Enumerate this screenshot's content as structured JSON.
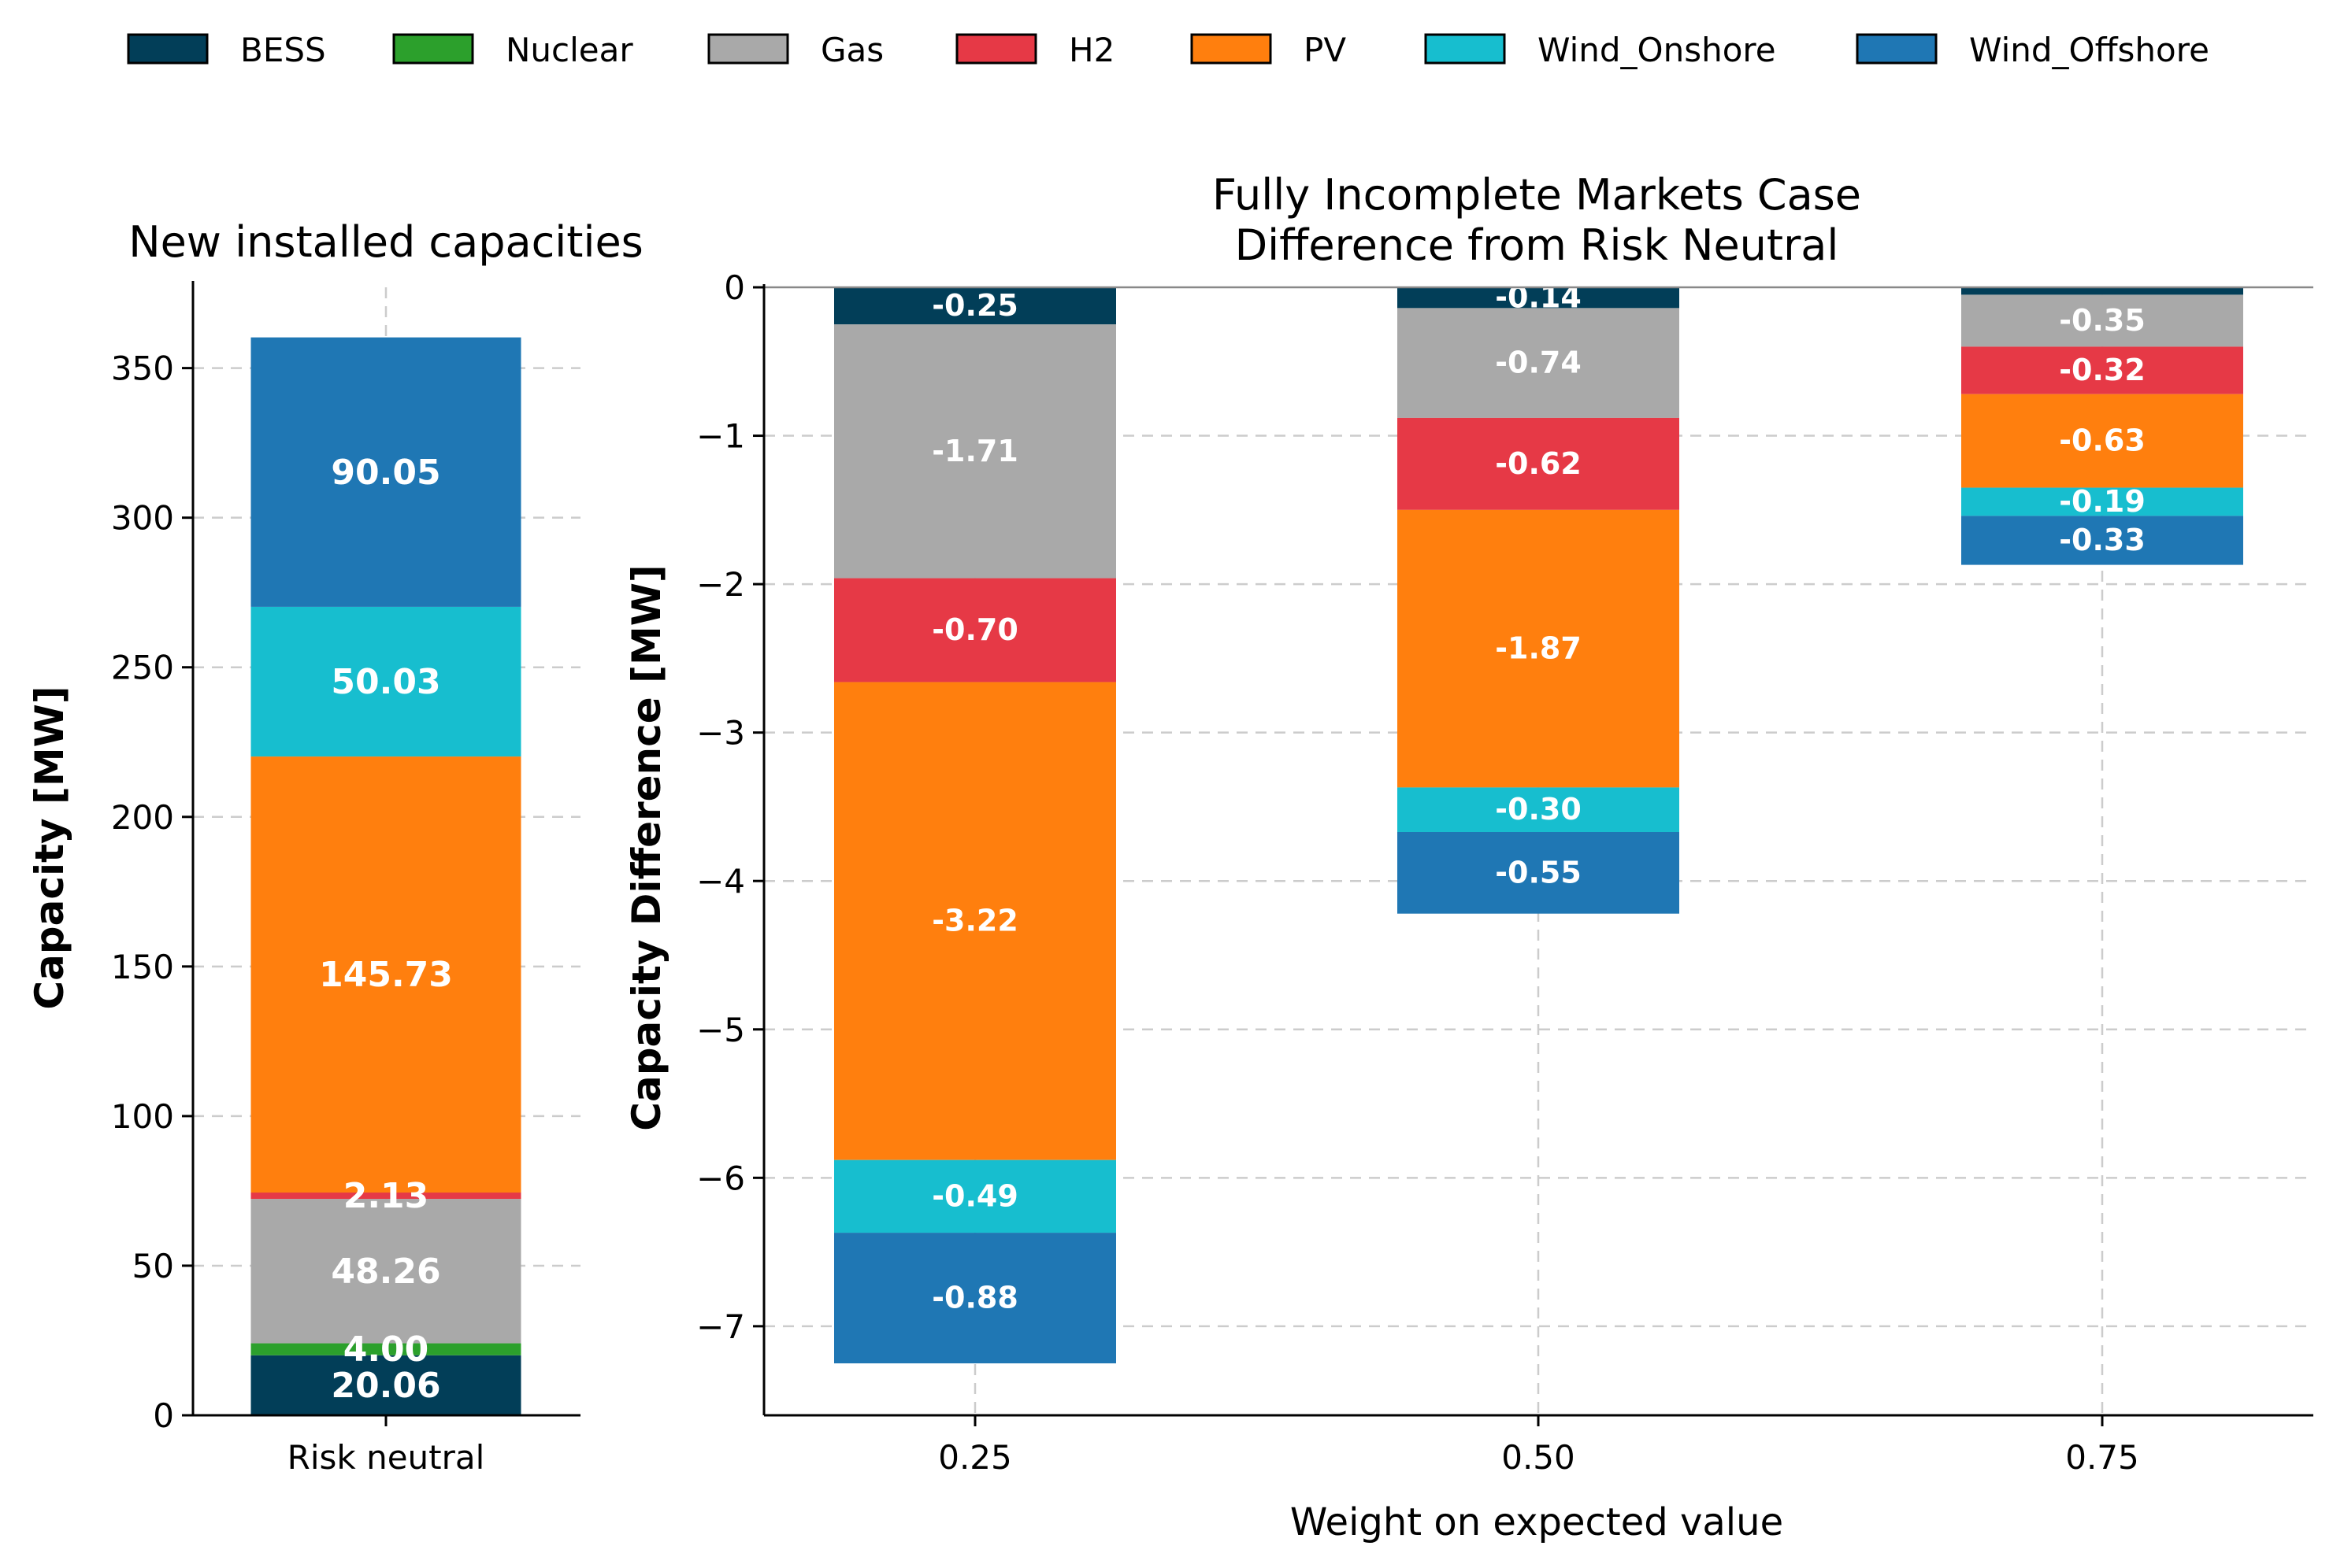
{
  "legend": [
    {
      "name": "BESS",
      "color": "#023e58"
    },
    {
      "name": "Nuclear",
      "color": "#2ca02c"
    },
    {
      "name": "Gas",
      "color": "#a9a9a9"
    },
    {
      "name": "H2",
      "color": "#e63946"
    },
    {
      "name": "PV",
      "color": "#ff7f0e"
    },
    {
      "name": "Wind_Onshore",
      "color": "#17becf"
    },
    {
      "name": "Wind_Offshore",
      "color": "#1f77b4"
    }
  ],
  "chart_data": [
    {
      "type": "bar",
      "stacked": true,
      "title": "New installed capacities",
      "xlabel": "",
      "ylabel": "Capacity [MW]",
      "categories": [
        "Risk neutral"
      ],
      "ylim": [
        0,
        377
      ],
      "yticks": [
        0,
        50,
        100,
        150,
        200,
        250,
        300,
        350
      ],
      "grid": true,
      "series": [
        {
          "name": "BESS",
          "values": [
            20.06
          ],
          "labels": [
            "20.06"
          ]
        },
        {
          "name": "Nuclear",
          "values": [
            4.0
          ],
          "labels": [
            "4.00"
          ]
        },
        {
          "name": "Gas",
          "values": [
            48.26
          ],
          "labels": [
            "48.26"
          ]
        },
        {
          "name": "H2",
          "values": [
            2.13
          ],
          "labels": [
            "2.13"
          ]
        },
        {
          "name": "PV",
          "values": [
            145.73
          ],
          "labels": [
            "145.73"
          ]
        },
        {
          "name": "Wind_Onshore",
          "values": [
            50.03
          ],
          "labels": [
            "50.03"
          ]
        },
        {
          "name": "Wind_Offshore",
          "values": [
            90.05
          ],
          "labels": [
            "90.05"
          ]
        }
      ]
    },
    {
      "type": "bar",
      "stacked": true,
      "title": "Fully Incomplete Markets Case\nDifference from Risk Neutral",
      "title_lines": [
        "Fully Incomplete Markets Case",
        "Difference from Risk Neutral"
      ],
      "xlabel": "Weight on expected value",
      "ylabel": "Capacity Difference [MW]",
      "categories": [
        "0.25",
        "0.50",
        "0.75"
      ],
      "ylim": [
        -7.6,
        0
      ],
      "yticks": [
        0,
        -1,
        -2,
        -3,
        -4,
        -5,
        -6,
        -7
      ],
      "grid": true,
      "series": [
        {
          "name": "BESS",
          "values": [
            -0.25,
            -0.14,
            -0.05
          ],
          "labels": [
            "-0.25",
            "-0.14",
            ""
          ]
        },
        {
          "name": "Gas",
          "values": [
            -1.71,
            -0.74,
            -0.35
          ],
          "labels": [
            "-1.71",
            "-0.74",
            "-0.35"
          ]
        },
        {
          "name": "H2",
          "values": [
            -0.7,
            -0.62,
            -0.32
          ],
          "labels": [
            "-0.70",
            "-0.62",
            "-0.32"
          ]
        },
        {
          "name": "PV",
          "values": [
            -3.22,
            -1.87,
            -0.63
          ],
          "labels": [
            "-3.22",
            "-1.87",
            "-0.63"
          ]
        },
        {
          "name": "Wind_Onshore",
          "values": [
            -0.49,
            -0.3,
            -0.19
          ],
          "labels": [
            "-0.49",
            "-0.30",
            "-0.19"
          ]
        },
        {
          "name": "Wind_Offshore",
          "values": [
            -0.88,
            -0.55,
            -0.33
          ],
          "labels": [
            "-0.88",
            "-0.55",
            "-0.33"
          ]
        }
      ]
    }
  ]
}
